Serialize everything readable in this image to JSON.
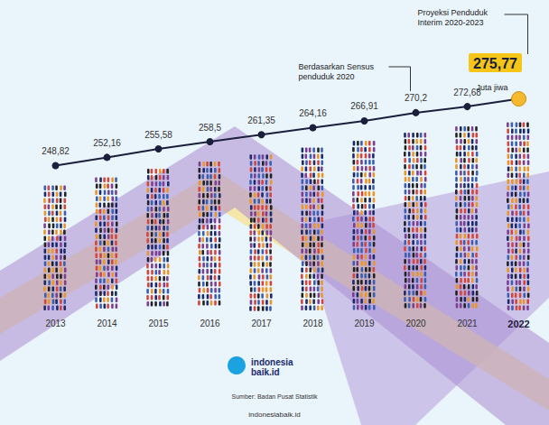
{
  "chart_data": {
    "type": "line",
    "categories": [
      "2013",
      "2014",
      "2015",
      "2016",
      "2017",
      "2018",
      "2019",
      "2020",
      "2021",
      "2022"
    ],
    "values": [
      248.82,
      252.16,
      255.58,
      258.5,
      261.35,
      264.16,
      266.91,
      270.2,
      272.68,
      275.77
    ],
    "value_labels": [
      "248,82",
      "252,16",
      "255,58",
      "258,5",
      "261,35",
      "264,16",
      "266,91",
      "270,2",
      "272,68",
      "275,77"
    ],
    "color": "#1b1f3b",
    "colors": [
      "#1b1f3b",
      "#1b1f3b",
      "#1b1f3b",
      "#1b1f3b",
      "#1b1f3b",
      "#1b1f3b",
      "#1b1f3b",
      "#1b1f3b",
      "#1b1f3b",
      "#f5b82e"
    ],
    "marker": "circle",
    "data_labels": true,
    "tick_labels": "x",
    "ylim": [
      190,
      280
    ],
    "annotations": [
      {
        "text": "Berdasarkan Sensus penduduk 2020",
        "category": "2020"
      },
      {
        "text": "Proyeksi Penduduk Interim 2020-2023",
        "category": "2022"
      },
      {
        "text": "Juta jiwa",
        "category": "2022"
      }
    ],
    "brand": "indonesia baik.id",
    "source": "Sumber: Badan Pusat Statistik",
    "footer": "indonesiabaik.id"
  }
}
